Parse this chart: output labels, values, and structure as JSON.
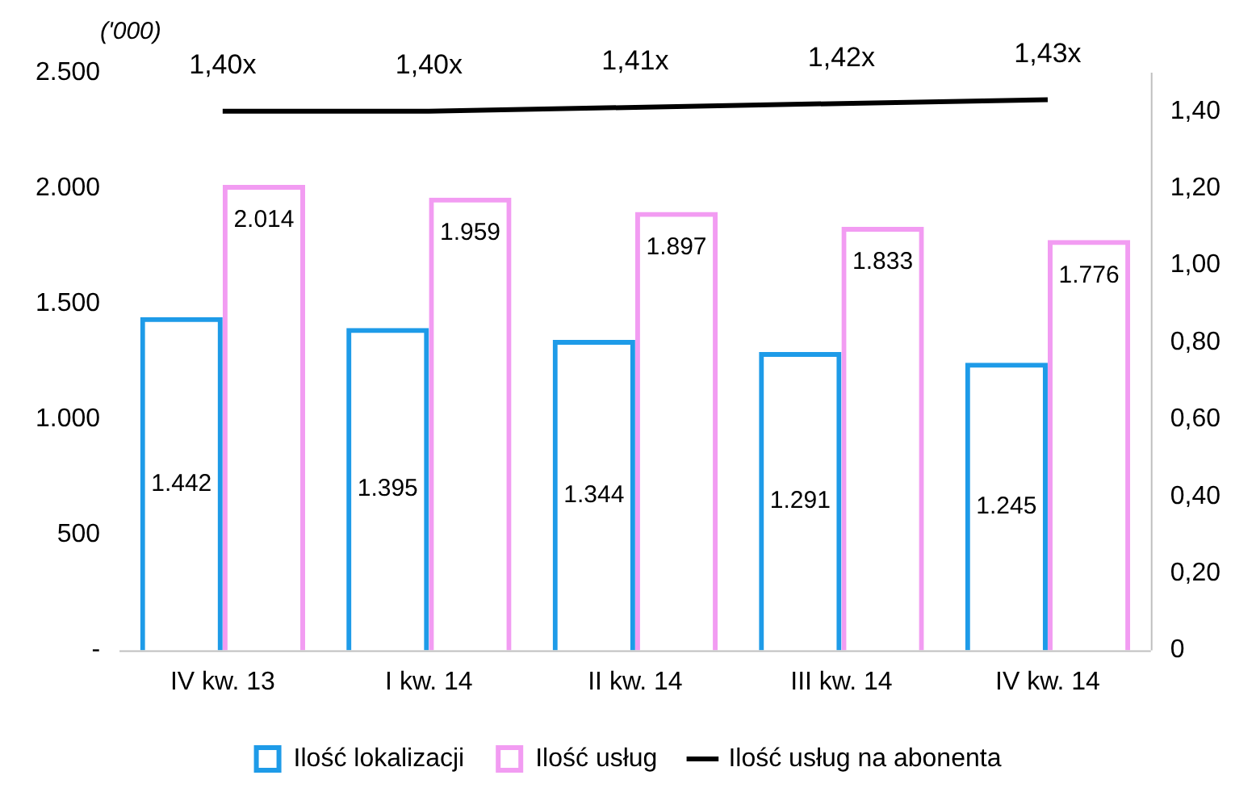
{
  "chart_data": {
    "type": "bar",
    "ylabel": "('000)",
    "categories": [
      "IV kw. 13",
      "I kw. 14",
      "II kw. 14",
      "III kw. 14",
      "IV kw. 14"
    ],
    "series": [
      {
        "name": "Ilość lokalizacji",
        "color": "#1e9be8",
        "values": [
          1442,
          1395,
          1344,
          1291,
          1245
        ],
        "value_labels": [
          "1.442",
          "1.395",
          "1.344",
          "1.291",
          "1.245"
        ]
      },
      {
        "name": "Ilość usług",
        "color": "#f29cf2",
        "values": [
          2014,
          1959,
          1897,
          1833,
          1776
        ],
        "value_labels": [
          "2.014",
          "1.959",
          "1.897",
          "1.833",
          "1.776"
        ]
      },
      {
        "name": "Ilość usług na abonenta",
        "type": "line",
        "axis": "y2",
        "color": "#000000",
        "marker": "none",
        "values": [
          1.4,
          1.4,
          1.41,
          1.42,
          1.43
        ],
        "value_labels": [
          "1,40x",
          "1,40x",
          "1,41x",
          "1,42x",
          "1,43x"
        ]
      }
    ],
    "ylim": [
      0,
      2500
    ],
    "yticks": [
      {
        "value": 0,
        "label": "-"
      },
      500,
      {
        "value": 1000,
        "label": "1.000"
      },
      {
        "value": 1500,
        "label": "1.500"
      },
      {
        "value": 2000,
        "label": "2.000"
      },
      {
        "value": 2500,
        "label": "2.500"
      }
    ],
    "y2lim": [
      0,
      1.5
    ],
    "y2ticks": [
      0,
      {
        "value": 0.2,
        "label": "0,20"
      },
      {
        "value": 0.4,
        "label": "0,40"
      },
      {
        "value": 0.6,
        "label": "0,60"
      },
      {
        "value": 0.8,
        "label": "0,80"
      },
      {
        "value": 1.0,
        "label": "1,00"
      },
      {
        "value": 1.2,
        "label": "1,20"
      },
      {
        "value": 1.4,
        "label": "1,40"
      }
    ],
    "grid": false,
    "legend": "bottom"
  }
}
